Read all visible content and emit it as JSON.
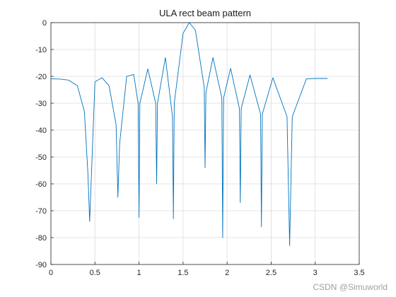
{
  "chart_data": {
    "type": "line",
    "title": "ULA rect beam pattern",
    "xlabel": "",
    "ylabel": "",
    "xlim": [
      0,
      3.5
    ],
    "ylim": [
      -90,
      0
    ],
    "xticks": [
      0,
      0.5,
      1,
      1.5,
      2,
      2.5,
      3,
      3.5
    ],
    "yticks": [
      0,
      -10,
      -20,
      -30,
      -40,
      -50,
      -60,
      -70,
      -80,
      -90
    ],
    "xtick_labels": [
      "0",
      "0.5",
      "1",
      "1.5",
      "2",
      "2.5",
      "3",
      "3.5"
    ],
    "ytick_labels": [
      "0",
      "-10",
      "-20",
      "-30",
      "-40",
      "-50",
      "-60",
      "-70",
      "-80",
      "-90"
    ],
    "grid": true,
    "line_color": "#0072bd",
    "series": [
      {
        "name": "",
        "x": [
          0,
          0.1,
          0.2,
          0.3,
          0.38,
          0.42,
          0.44,
          0.5,
          0.58,
          0.66,
          0.74,
          0.76,
          0.78,
          0.86,
          0.94,
          0.99,
          1.0,
          1.01,
          1.1,
          1.19,
          1.2,
          1.21,
          1.3,
          1.38,
          1.39,
          1.4,
          1.5,
          1.571,
          1.64,
          1.74,
          1.75,
          1.76,
          1.84,
          1.94,
          1.95,
          1.96,
          2.04,
          2.14,
          2.15,
          2.16,
          2.26,
          2.38,
          2.39,
          2.4,
          2.52,
          2.68,
          2.71,
          2.74,
          2.9,
          3.0,
          3.14
        ],
        "y": [
          -20.9,
          -21.0,
          -21.4,
          -23.5,
          -33.0,
          -56.0,
          -74.0,
          -22.0,
          -20.5,
          -23.5,
          -38.0,
          -65.0,
          -45.0,
          -20.0,
          -19.3,
          -30.0,
          -72.5,
          -30.0,
          -17.2,
          -30.0,
          -60.0,
          -30.0,
          -13.0,
          -35.0,
          -73.0,
          -30.0,
          -4.0,
          0.0,
          -2.8,
          -24.0,
          -54.0,
          -26.0,
          -13.0,
          -28.0,
          -80.0,
          -28.0,
          -17.0,
          -32.0,
          -67.0,
          -32.0,
          -19.5,
          -34.0,
          -76.0,
          -34.0,
          -20.5,
          -35.0,
          -83.0,
          -35.0,
          -20.9,
          -20.8,
          -20.8
        ]
      }
    ]
  },
  "watermark": "CSDN @Simuworld"
}
